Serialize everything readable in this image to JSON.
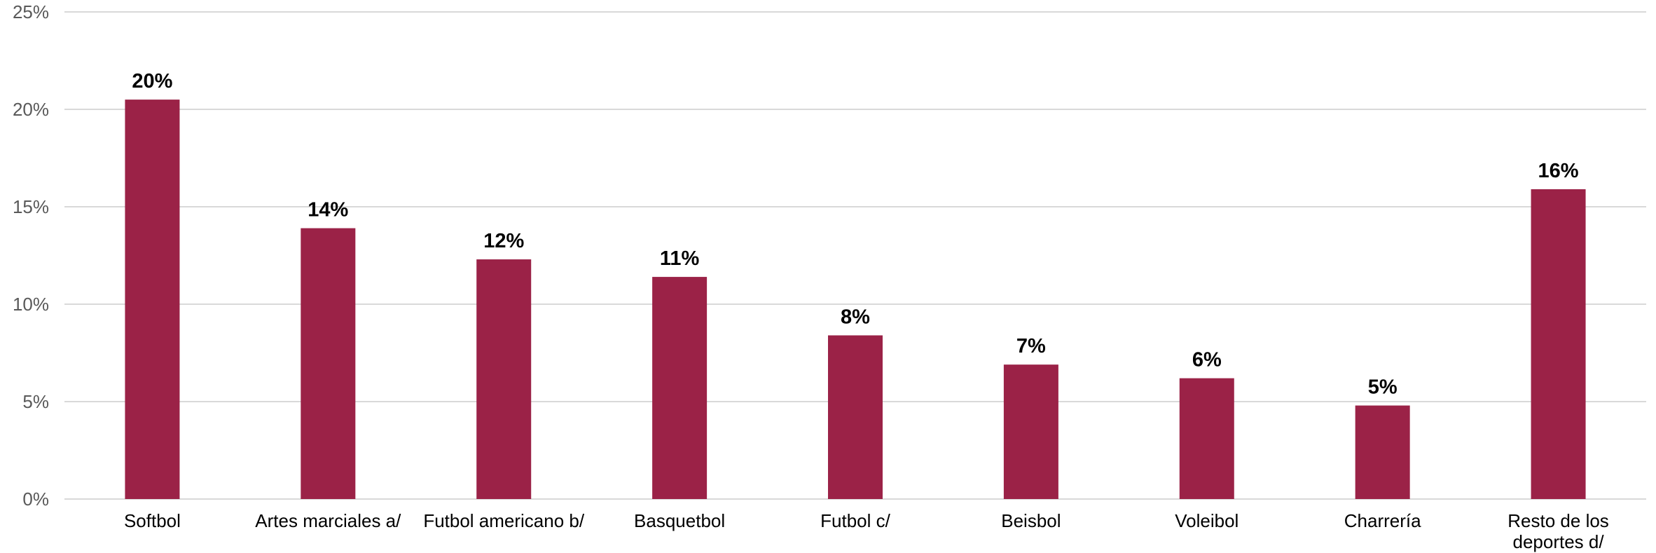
{
  "chart_data": {
    "type": "bar",
    "categories": [
      [
        "Softbol"
      ],
      [
        "Artes marciales a/"
      ],
      [
        "Futbol americano b/"
      ],
      [
        "Basquetbol"
      ],
      [
        "Futbol c/"
      ],
      [
        "Beisbol"
      ],
      [
        "Voleibol"
      ],
      [
        "Charrería"
      ],
      [
        "Resto de los",
        "deportes d/"
      ]
    ],
    "values": [
      20.5,
      13.9,
      12.3,
      11.4,
      8.4,
      6.9,
      6.2,
      4.8,
      15.9
    ],
    "data_labels": [
      "20%",
      "14%",
      "12%",
      "11%",
      "8%",
      "7%",
      "6%",
      "5%",
      "16%"
    ],
    "y_ticks": [
      0,
      5,
      10,
      15,
      20,
      25
    ],
    "y_tick_labels": [
      "0%",
      "5%",
      "10%",
      "15%",
      "20%",
      "25%"
    ],
    "ylim": [
      0,
      25
    ],
    "grid": true,
    "legend": "none",
    "bar_color": "#9b2247",
    "title": "",
    "xlabel": "",
    "ylabel": ""
  }
}
